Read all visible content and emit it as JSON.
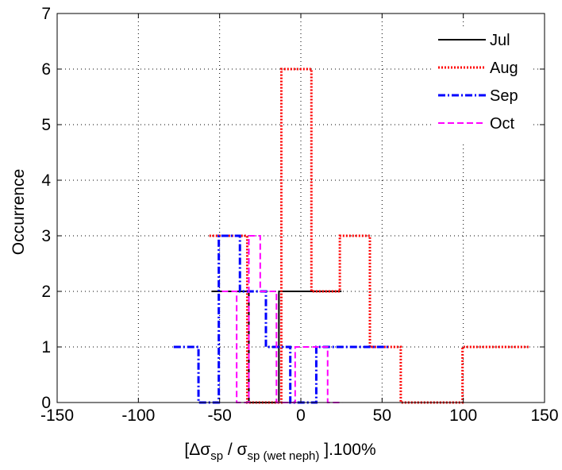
{
  "chart_data": {
    "type": "line",
    "style": "stairs",
    "title": "",
    "xlabel": "[Δσsp / σsp (wet neph) ].100%",
    "xlabel_parts": {
      "open": "[Δσ",
      "sub1": "sp",
      "mid": " / σ",
      "sub2": "sp (wet neph)",
      "close": " ].100%"
    },
    "ylabel": "Occurrence",
    "xlim": [
      -150,
      150
    ],
    "ylim": [
      0,
      7
    ],
    "xticks": [
      -150,
      -100,
      -50,
      0,
      50,
      100,
      150
    ],
    "yticks": [
      0,
      1,
      2,
      3,
      4,
      5,
      6,
      7
    ],
    "grid": true,
    "legend_position": "top-right",
    "series": [
      {
        "name": "Jul",
        "color": "#000000",
        "dash": "solid",
        "x": [
          -45,
          -19,
          -8,
          15
        ],
        "y": [
          2,
          0,
          2,
          2
        ]
      },
      {
        "name": "Aug",
        "color": "#ff0000",
        "dash": "dotted",
        "x": [
          -44,
          -22,
          -2,
          15,
          33,
          52,
          71,
          128
        ],
        "y": [
          3,
          0,
          6,
          2,
          3,
          1,
          0,
          1
        ]
      },
      {
        "name": "Sep",
        "color": "#0000ff",
        "dash": "dashdot",
        "x": [
          -70,
          -56,
          -45,
          -30,
          -13,
          0,
          19,
          46
        ],
        "y": [
          1,
          0,
          3,
          2,
          1,
          0,
          1,
          1
        ]
      },
      {
        "name": "Oct",
        "color": "#ff00ff",
        "dash": "dashed",
        "x": [
          -44,
          -35,
          -29,
          -21,
          -9,
          2,
          12,
          21
        ],
        "y": [
          2,
          0,
          3,
          2,
          0,
          1,
          1,
          0
        ]
      }
    ]
  }
}
